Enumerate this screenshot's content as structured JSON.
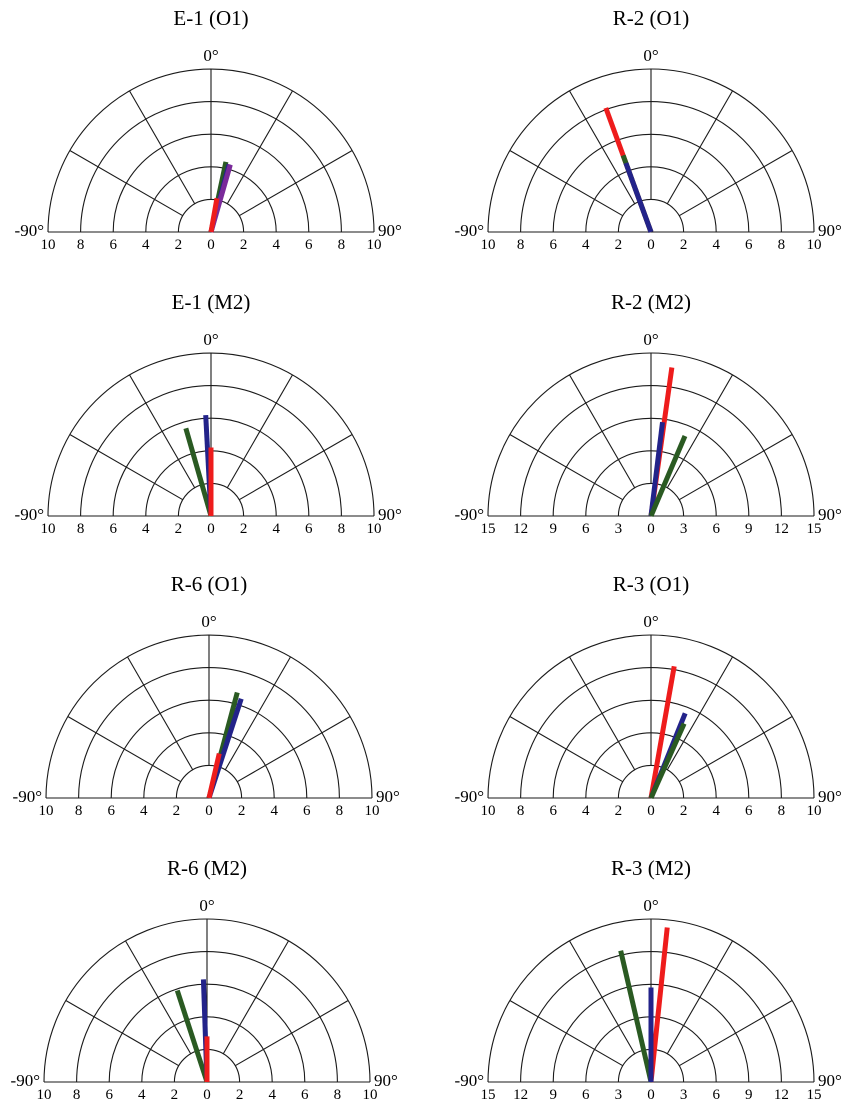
{
  "chart_data": [
    {
      "type": "polar-semicircle",
      "title": "E-1 (O1)",
      "top_label": "0°",
      "left_label": "-90°",
      "right_label": "90°",
      "rmax": 10,
      "tick_labels": [
        "10",
        "8",
        "6",
        "4",
        "2",
        "0",
        "2",
        "4",
        "6",
        "8",
        "10"
      ],
      "series": [
        {
          "color": "#2a5a22",
          "angle": 12,
          "length": 4.4
        },
        {
          "color": "#23238a",
          "angle": 15,
          "length": 4.3
        },
        {
          "color": "#7a2a9a",
          "angle": 16,
          "length": 4.3
        },
        {
          "color": "#ee1c1c",
          "angle": 10,
          "length": 2.1
        }
      ]
    },
    {
      "type": "polar-semicircle",
      "title": "R-2 (O1)",
      "top_label": "0°",
      "left_label": "-90°",
      "right_label": "90°",
      "rmax": 10,
      "tick_labels": [
        "10",
        "8",
        "6",
        "4",
        "2",
        "0",
        "2",
        "4",
        "6",
        "8",
        "10"
      ],
      "series": [
        {
          "color": "#ee1c1c",
          "angle": -20,
          "length": 8.1
        },
        {
          "color": "#2a5a22",
          "angle": -20,
          "length": 5.0
        },
        {
          "color": "#23238a",
          "angle": -20,
          "length": 4.5
        }
      ]
    },
    {
      "type": "polar-semicircle",
      "title": "E-1 (M2)",
      "top_label": "0°",
      "left_label": "-90°",
      "right_label": "90°",
      "rmax": 10,
      "tick_labels": [
        "10",
        "8",
        "6",
        "4",
        "2",
        "0",
        "2",
        "4",
        "6",
        "8",
        "10"
      ],
      "series": [
        {
          "color": "#2a5a22",
          "angle": -16,
          "length": 5.6
        },
        {
          "color": "#23238a",
          "angle": -3,
          "length": 6.2
        },
        {
          "color": "#ee1c1c",
          "angle": 0,
          "length": 4.2
        }
      ]
    },
    {
      "type": "polar-semicircle",
      "title": "R-2 (M2)",
      "top_label": "0°",
      "left_label": "-90°",
      "right_label": "90°",
      "rmax": 15,
      "tick_labels": [
        "15",
        "12",
        "9",
        "6",
        "3",
        "0",
        "3",
        "6",
        "9",
        "12",
        "15"
      ],
      "series": [
        {
          "color": "#ee1c1c",
          "angle": 8,
          "length": 13.8
        },
        {
          "color": "#23238a",
          "angle": 7,
          "length": 8.7
        },
        {
          "color": "#2a5a22",
          "angle": 23,
          "length": 8.0
        }
      ]
    },
    {
      "type": "polar-semicircle",
      "title": "R-6 (O1)",
      "top_label": "0°",
      "left_label": "-90°",
      "right_label": "90°",
      "rmax": 10,
      "tick_labels": [
        "10",
        "8",
        "6",
        "4",
        "2",
        "0",
        "2",
        "4",
        "6",
        "8",
        "10"
      ],
      "series": [
        {
          "color": "#2a5a22",
          "angle": 15,
          "length": 6.7
        },
        {
          "color": "#23238a",
          "angle": 18,
          "length": 6.4
        },
        {
          "color": "#ee1c1c",
          "angle": 13,
          "length": 2.8
        }
      ]
    },
    {
      "type": "polar-semicircle",
      "title": "R-3 (O1)",
      "top_label": "0°",
      "left_label": "-90°",
      "right_label": "90°",
      "rmax": 10,
      "tick_labels": [
        "10",
        "8",
        "6",
        "4",
        "2",
        "0",
        "2",
        "4",
        "6",
        "8",
        "10"
      ],
      "series": [
        {
          "color": "#ee1c1c",
          "angle": 10,
          "length": 8.2
        },
        {
          "color": "#23238a",
          "angle": 22,
          "length": 5.6
        },
        {
          "color": "#2a5a22",
          "angle": 24,
          "length": 5.0
        }
      ]
    },
    {
      "type": "polar-semicircle",
      "title": "R-6 (M2)",
      "top_label": "0°",
      "left_label": "-90°",
      "right_label": "90°",
      "rmax": 10,
      "tick_labels": [
        "10",
        "8",
        "6",
        "4",
        "2",
        "0",
        "2",
        "4",
        "6",
        "8",
        "10"
      ],
      "series": [
        {
          "color": "#2a5a22",
          "angle": -18,
          "length": 5.9
        },
        {
          "color": "#23238a",
          "angle": -2,
          "length": 6.3
        },
        {
          "color": "#ee1c1c",
          "angle": 0,
          "length": 2.8
        }
      ]
    },
    {
      "type": "polar-semicircle",
      "title": "R-3 (M2)",
      "top_label": "0°",
      "left_label": "-90°",
      "right_label": "90°",
      "rmax": 15,
      "tick_labels": [
        "15",
        "12",
        "9",
        "6",
        "3",
        "0",
        "3",
        "6",
        "9",
        "12",
        "15"
      ],
      "series": [
        {
          "color": "#ee1c1c",
          "angle": 6,
          "length": 14.3
        },
        {
          "color": "#2a5a22",
          "angle": -13,
          "length": 12.4
        },
        {
          "color": "#23238a",
          "angle": 0,
          "length": 8.7
        }
      ]
    }
  ]
}
